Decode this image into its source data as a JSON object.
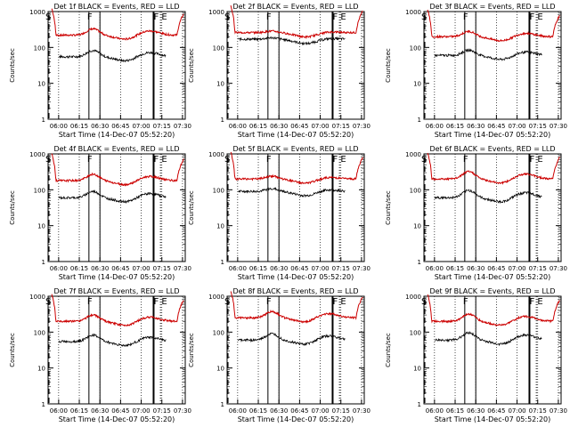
{
  "chart_data": {
    "type": "line",
    "x_tick_labels": [
      "06:00",
      "06:15",
      "06:30",
      "06:45",
      "07:00",
      "07:15",
      "07:30"
    ],
    "x_range": [
      "05:52:20",
      "07:32:00"
    ],
    "y_range": [
      1,
      1000
    ],
    "y_scale": "log",
    "y_tick_labels": [
      "1",
      "10",
      "100",
      "1000"
    ],
    "ylabel": "Counts/sec",
    "xlabel": "Start Time (14-Dec-07 05:52:20)",
    "colors": {
      "events": "#000000",
      "lld": "#cc0000"
    },
    "markers": {
      "S": "05:53",
      "F": [
        "06:22",
        "06:30"
      ],
      "E": [
        "07:09",
        "07:14"
      ]
    },
    "panels": [
      {
        "title": "Det 1f BLACK = Events, RED = LLD",
        "lld_base": 220,
        "event_base": 55,
        "bump": 1.5
      },
      {
        "title": "Det 2f BLACK = Events, RED = LLD",
        "lld_base": 260,
        "event_base": 170,
        "bump": 1.1
      },
      {
        "title": "Det 3f BLACK = Events, RED = LLD",
        "lld_base": 200,
        "event_base": 60,
        "bump": 1.4
      },
      {
        "title": "Det 4f BLACK = Events, RED = LLD",
        "lld_base": 180,
        "event_base": 60,
        "bump": 1.5
      },
      {
        "title": "Det 5f BLACK = Events, RED = LLD",
        "lld_base": 200,
        "event_base": 90,
        "bump": 1.2
      },
      {
        "title": "Det 6f BLACK = Events, RED = LLD",
        "lld_base": 200,
        "event_base": 60,
        "bump": 1.6
      },
      {
        "title": "Det 7f BLACK = Events, RED = LLD",
        "lld_base": 200,
        "event_base": 55,
        "bump": 1.5
      },
      {
        "title": "Det 8f BLACK = Events, RED = LLD",
        "lld_base": 250,
        "event_base": 60,
        "bump": 1.5
      },
      {
        "title": "Det 9f BLACK = Events, RED = LLD",
        "lld_base": 200,
        "event_base": 60,
        "bump": 1.6
      }
    ]
  }
}
